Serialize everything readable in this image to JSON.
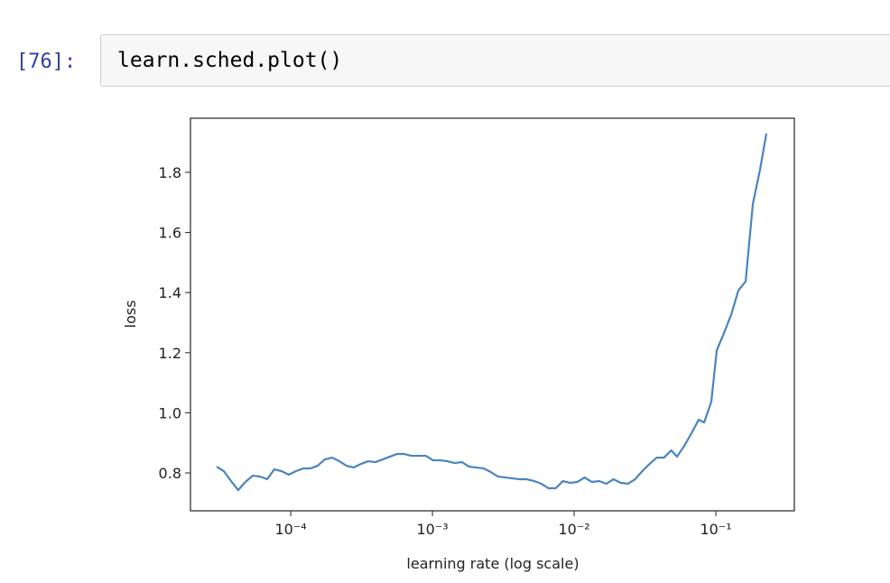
{
  "cell": {
    "prompt": "[76]:",
    "code": "learn.sched.plot()"
  },
  "chart_data": {
    "type": "line",
    "xlabel": "learning rate (log scale)",
    "ylabel": "loss",
    "xscale": "log",
    "color": "#4a84bf",
    "xlim": [
      1.96e-05,
      0.358
    ],
    "ylim": [
      0.674,
      1.98
    ],
    "xticks": [
      {
        "value": 0.0001,
        "label": "10⁻⁴"
      },
      {
        "value": 0.001,
        "label": "10⁻³"
      },
      {
        "value": 0.01,
        "label": "10⁻²"
      },
      {
        "value": 0.1,
        "label": "10⁻¹"
      }
    ],
    "yticks": [
      0.8,
      {
        "value": 1,
        "label": "1.0"
      },
      1.2,
      1.4,
      1.6,
      1.8
    ],
    "x": [
      3e-05,
      3.37e-05,
      3.79e-05,
      4.26e-05,
      4.79e-05,
      5.39e-05,
      6.06e-05,
      6.81e-05,
      7.66e-05,
      8.61e-05,
      9.68e-05,
      0.0001089,
      0.0001224,
      0.0001376,
      0.0001548,
      0.000174,
      0.0001957,
      0.00022,
      0.0002474,
      0.0002782,
      0.0003128,
      0.0003517,
      0.0003955,
      0.0004447,
      0.0005,
      0.0005622,
      0.0006321,
      0.0007108,
      0.0007992,
      0.0008986,
      0.00101,
      0.001136,
      0.001277,
      0.001436,
      0.001615,
      0.001816,
      0.002042,
      0.002296,
      0.002581,
      0.002902,
      0.003263,
      0.003669,
      0.004126,
      0.004639,
      0.005216,
      0.005865,
      0.006595,
      0.007415,
      0.008338,
      0.009375,
      0.01054,
      0.01185,
      0.01333,
      0.01499,
      0.01685,
      0.01895,
      0.02131,
      0.02396,
      0.02694,
      0.03029,
      0.03406,
      0.0383,
      0.04306,
      0.04842,
      0.0532,
      0.0599,
      0.0673,
      0.0757,
      0.0827,
      0.0929,
      0.1015,
      0.1141,
      0.1283,
      0.1443,
      0.1623,
      0.1825,
      0.2051,
      0.2273
    ],
    "values": [
      0.821,
      0.806,
      0.773,
      0.743,
      0.77,
      0.791,
      0.788,
      0.779,
      0.812,
      0.806,
      0.794,
      0.806,
      0.815,
      0.815,
      0.824,
      0.845,
      0.851,
      0.839,
      0.824,
      0.818,
      0.83,
      0.839,
      0.836,
      0.845,
      0.854,
      0.863,
      0.863,
      0.857,
      0.857,
      0.857,
      0.842,
      0.842,
      0.839,
      0.833,
      0.836,
      0.821,
      0.818,
      0.815,
      0.803,
      0.788,
      0.785,
      0.782,
      0.779,
      0.779,
      0.773,
      0.764,
      0.749,
      0.749,
      0.773,
      0.767,
      0.77,
      0.785,
      0.77,
      0.773,
      0.764,
      0.779,
      0.767,
      0.764,
      0.779,
      0.806,
      0.83,
      0.851,
      0.851,
      0.875,
      0.854,
      0.89,
      0.932,
      0.977,
      0.968,
      1.037,
      1.208,
      1.265,
      1.326,
      1.407,
      1.437,
      1.695,
      1.809,
      1.929
    ]
  }
}
